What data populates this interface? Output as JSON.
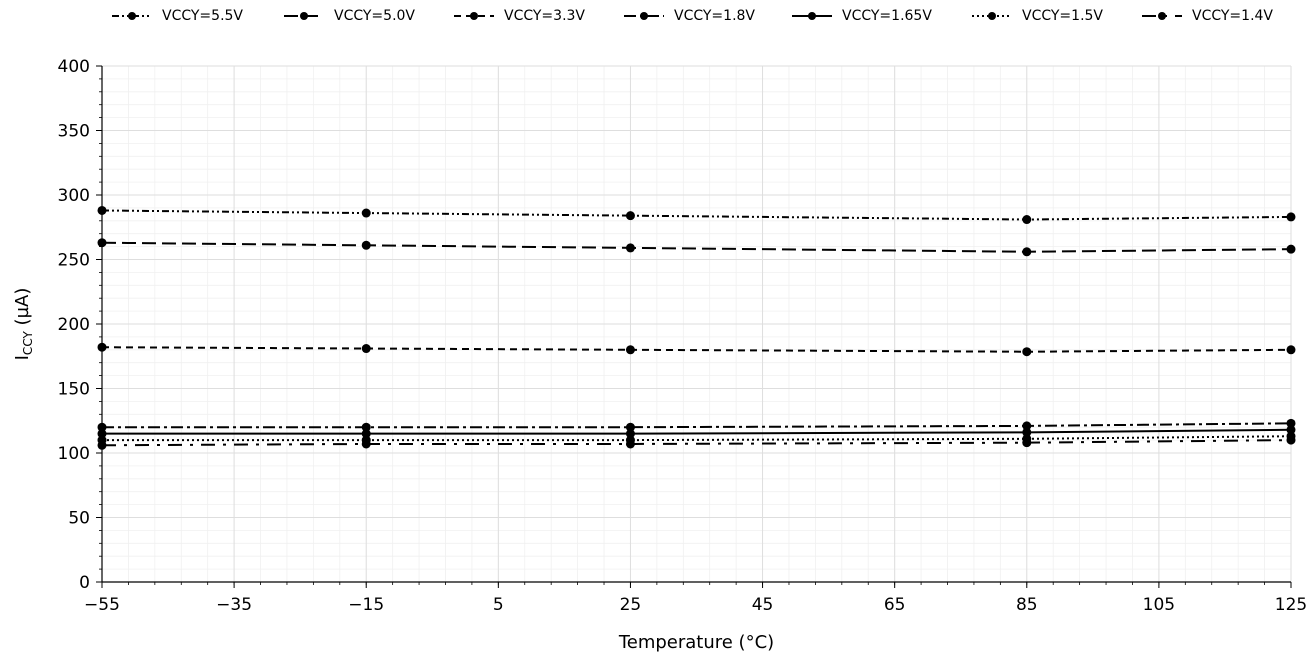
{
  "chart_data": {
    "type": "line",
    "xlabel": "Temperature (°C)",
    "ylabel_main": "I",
    "ylabel_sub": "CCY",
    "ylabel_unit": " (µA)",
    "xlim": [
      -55,
      125
    ],
    "ylim": [
      0,
      400
    ],
    "x_ticks": [
      -55,
      -35,
      -15,
      5,
      25,
      45,
      65,
      85,
      105,
      125
    ],
    "y_ticks": [
      0,
      50,
      100,
      150,
      200,
      250,
      300,
      350,
      400
    ],
    "x": [
      -55,
      -15,
      25,
      85,
      125
    ],
    "grid": true,
    "legend_position": "top",
    "series": [
      {
        "name": "VCCY=5.5V",
        "dash": "dash-dot-dot",
        "values": [
          288,
          286,
          284,
          281,
          283
        ]
      },
      {
        "name": "VCCY=5.0V",
        "dash": "long-dash",
        "values": [
          263,
          261,
          259,
          256,
          258
        ]
      },
      {
        "name": "VCCY=3.3V",
        "dash": "dashed",
        "values": [
          182,
          181,
          180,
          178.5,
          180
        ]
      },
      {
        "name": "VCCY=1.8V",
        "dash": "dash-dot",
        "values": [
          120,
          120,
          120,
          121,
          123
        ]
      },
      {
        "name": "VCCY=1.65V",
        "dash": "solid",
        "values": [
          115,
          115,
          115,
          116,
          118
        ]
      },
      {
        "name": "VCCY=1.5V",
        "dash": "dotted",
        "values": [
          110,
          110,
          110,
          111,
          113
        ]
      },
      {
        "name": "VCCY=1.4V",
        "dash": "dash-dot-sparse",
        "values": [
          106,
          107,
          107,
          108,
          110
        ]
      }
    ]
  }
}
